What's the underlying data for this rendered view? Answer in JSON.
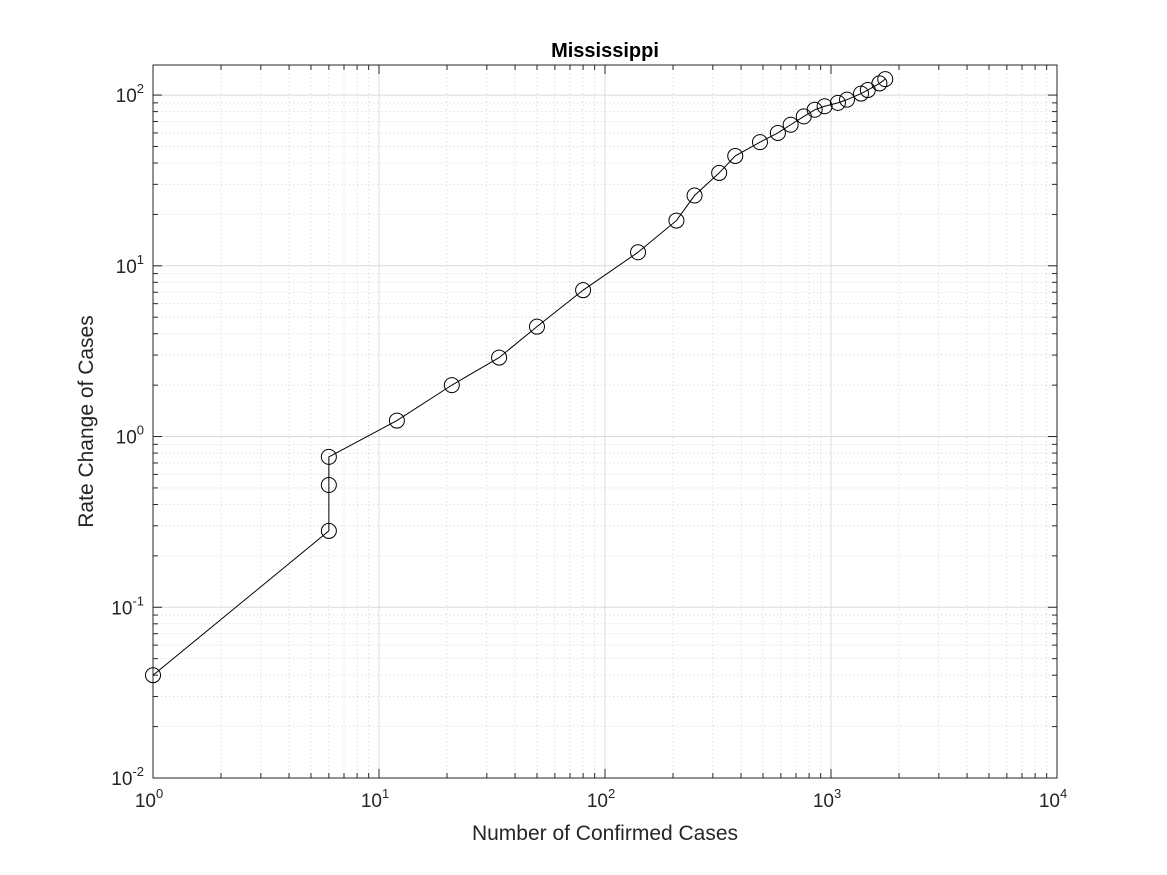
{
  "chart_data": {
    "type": "line",
    "title": "Mississippi",
    "xlabel": "Number of Confirmed Cases",
    "ylabel": "Rate Change of Cases",
    "xscale": "log",
    "yscale": "log",
    "xlim": [
      1,
      10000
    ],
    "ylim": [
      0.01,
      150
    ],
    "grid": true,
    "minor_grid": true,
    "x_ticks": [
      1,
      10,
      100,
      1000,
      10000
    ],
    "x_tick_labels": [
      {
        "base": "10",
        "exp": "0"
      },
      {
        "base": "10",
        "exp": "1"
      },
      {
        "base": "10",
        "exp": "2"
      },
      {
        "base": "10",
        "exp": "3"
      },
      {
        "base": "10",
        "exp": "4"
      }
    ],
    "y_ticks": [
      0.01,
      0.1,
      1,
      10,
      100
    ],
    "y_tick_labels": [
      {
        "base": "10",
        "exp": "-2"
      },
      {
        "base": "10",
        "exp": "-1"
      },
      {
        "base": "10",
        "exp": "0"
      },
      {
        "base": "10",
        "exp": "1"
      },
      {
        "base": "10",
        "exp": "2"
      }
    ],
    "series": [
      {
        "color": "#000000",
        "marker": "circle-open",
        "x": [
          1,
          6,
          6,
          6,
          12,
          21,
          34,
          50,
          80,
          140,
          207,
          249,
          320,
          377,
          485,
          582,
          663,
          758,
          847,
          937,
          1073,
          1177,
          1358,
          1455,
          1638,
          1738
        ],
        "y": [
          0.04,
          0.28,
          0.52,
          0.76,
          1.24,
          2.0,
          2.9,
          4.4,
          7.2,
          12.0,
          18.4,
          25.8,
          35.0,
          44.0,
          53.0,
          60.0,
          67.0,
          75.0,
          82.0,
          86.0,
          90.0,
          94.0,
          102.0,
          107.0,
          117.0,
          124.0
        ]
      }
    ]
  }
}
